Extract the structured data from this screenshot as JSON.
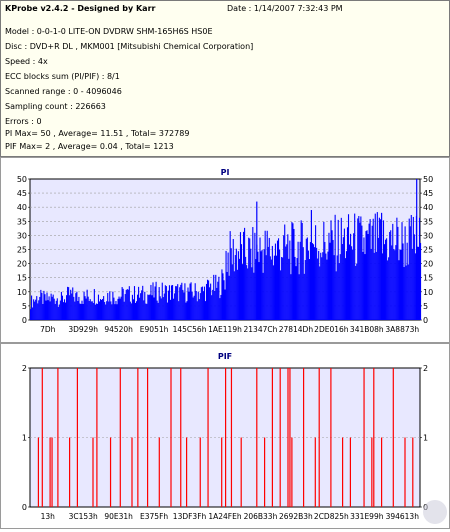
{
  "info": {
    "title": "KProbe v2.4.2 - Designed by Karr",
    "date": "Date : 1/14/2007 7:32:43 PM",
    "lines": [
      "Model : 0-0-1-0 LITE-ON DVDRW SHM-165H6S HS0E",
      "Disc : DVD+R DL , MKM001 [Mitsubishi Chemical Corporation]",
      "Speed : 4x",
      "ECC blocks sum (PI/PIF) : 8/1",
      "Scanned range : 0 - 4096046",
      "Sampling count : 226663",
      "Errors : 0",
      "PI Max= 50 , Average= 11.51 , Total= 372789",
      "PIF Max= 2 , Average= 0.04 , Total= 1213"
    ]
  },
  "colors": {
    "info_bg": "#fffff0",
    "plot_bg": "#e8e8ff",
    "pi_bar": "#0000ff",
    "pif_bar": "#ff0000",
    "title": "#000080"
  },
  "chart_data": [
    {
      "type": "bar",
      "title": "PI",
      "ylim": [
        0,
        50
      ],
      "y_ticks": [
        0,
        5,
        10,
        15,
        20,
        25,
        30,
        35,
        40,
        45,
        50
      ],
      "x_tick_labels": [
        "7Dh",
        "3D929h",
        "94520h",
        "E9051h",
        "145C56h",
        "1AE119h",
        "21347Ch",
        "27814Dh",
        "2DE016h",
        "341B08h",
        "3A8873h"
      ],
      "grid": true,
      "x": [
        0,
        0.02,
        0.04,
        0.06,
        0.08,
        0.1,
        0.12,
        0.14,
        0.16,
        0.18,
        0.2,
        0.22,
        0.24,
        0.26,
        0.28,
        0.3,
        0.32,
        0.34,
        0.36,
        0.38,
        0.4,
        0.42,
        0.44,
        0.46,
        0.48,
        0.5,
        0.5,
        0.52,
        0.54,
        0.56,
        0.58,
        0.6,
        0.62,
        0.64,
        0.66,
        0.68,
        0.7,
        0.72,
        0.74,
        0.76,
        0.78,
        0.8,
        0.82,
        0.84,
        0.86,
        0.88,
        0.9,
        0.92,
        0.94,
        0.96,
        0.98,
        1.0
      ],
      "values": [
        7,
        9,
        8,
        9,
        8,
        10,
        9,
        9,
        10,
        9,
        10,
        9,
        10,
        10,
        10,
        10,
        11,
        11,
        11,
        11,
        11,
        11,
        11,
        13,
        13,
        17,
        25,
        26,
        27,
        26,
        27,
        28,
        27,
        28,
        28,
        28,
        29,
        30,
        30,
        30,
        30,
        31,
        31,
        31,
        30,
        31,
        31,
        31,
        31,
        30,
        31,
        31
      ],
      "peaks": [
        {
          "x": 0.99,
          "value": 50
        },
        {
          "x": 0.58,
          "value": 42
        },
        {
          "x": 0.72,
          "value": 39
        },
        {
          "x": 0.9,
          "value": 38
        }
      ]
    },
    {
      "type": "bar",
      "title": "PIF",
      "ylim": [
        0,
        2
      ],
      "y_ticks": [
        0,
        1,
        2
      ],
      "x_tick_labels": [
        "13h",
        "3C153h",
        "90E31h",
        "E375Fh",
        "13DF3Fh",
        "1A24FEh",
        "206B33h",
        "2692B3h",
        "2CD825h",
        "331E99h",
        "394613h"
      ],
      "grid": true,
      "x": [
        0.02,
        0.03,
        0.05,
        0.055,
        0.07,
        0.1,
        0.12,
        0.16,
        0.17,
        0.205,
        0.23,
        0.26,
        0.275,
        0.3,
        0.33,
        0.36,
        0.385,
        0.4,
        0.435,
        0.455,
        0.49,
        0.5,
        0.515,
        0.54,
        0.58,
        0.6,
        0.62,
        0.64,
        0.66,
        0.665,
        0.67,
        0.7,
        0.73,
        0.74,
        0.77,
        0.8,
        0.82,
        0.855,
        0.875,
        0.88,
        0.9,
        0.93,
        0.96,
        0.98
      ],
      "values": [
        1,
        2,
        1,
        1,
        2,
        1,
        2,
        1,
        2,
        1,
        2,
        1,
        2,
        2,
        1,
        2,
        2,
        1,
        1,
        2,
        1,
        2,
        2,
        1,
        2,
        1,
        2,
        2,
        2,
        2,
        1,
        2,
        1,
        2,
        2,
        1,
        1,
        2,
        1,
        2,
        1,
        2,
        1,
        1
      ]
    }
  ]
}
